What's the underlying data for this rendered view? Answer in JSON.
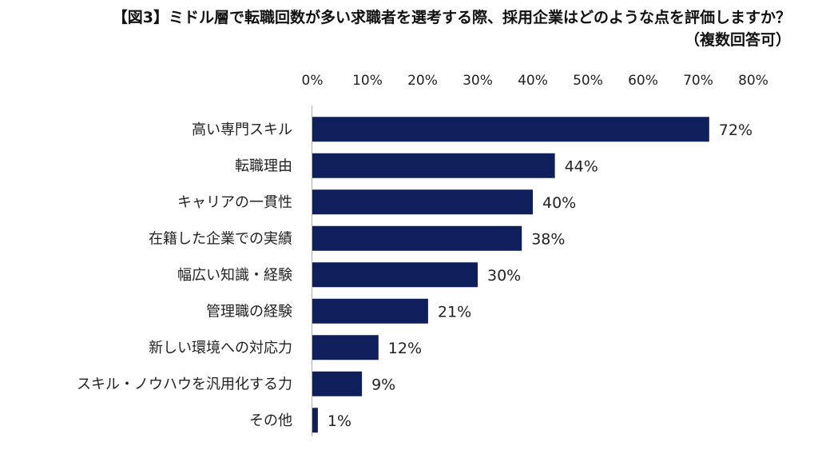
{
  "title_line1": "【図3】ミドル層で転職回数が多い求職者を選考する際、採用企業はどのような点を評価しますか？",
  "title_line2": "（複数回答可）",
  "chart_data": {
    "type": "bar",
    "orientation": "horizontal",
    "categories": [
      "高い専門スキル",
      "転職理由",
      "キャリアの一貫性",
      "在籍した企業での実績",
      "幅広い知識・経験",
      "管理職の経験",
      "新しい環境への対応力",
      "スキル・ノウハウを汎用化する力",
      "その他"
    ],
    "values": [
      72,
      44,
      40,
      38,
      30,
      21,
      12,
      9,
      1
    ],
    "value_labels": [
      "72%",
      "44%",
      "40%",
      "38%",
      "30%",
      "21%",
      "12%",
      "9%",
      "1%"
    ],
    "x_ticks": [
      "0%",
      "10%",
      "20%",
      "30%",
      "40%",
      "50%",
      "60%",
      "70%",
      "80%"
    ],
    "xlim": [
      0,
      80
    ],
    "tick_position": "top",
    "grid": false,
    "bar_color": "#0e1f5b"
  }
}
